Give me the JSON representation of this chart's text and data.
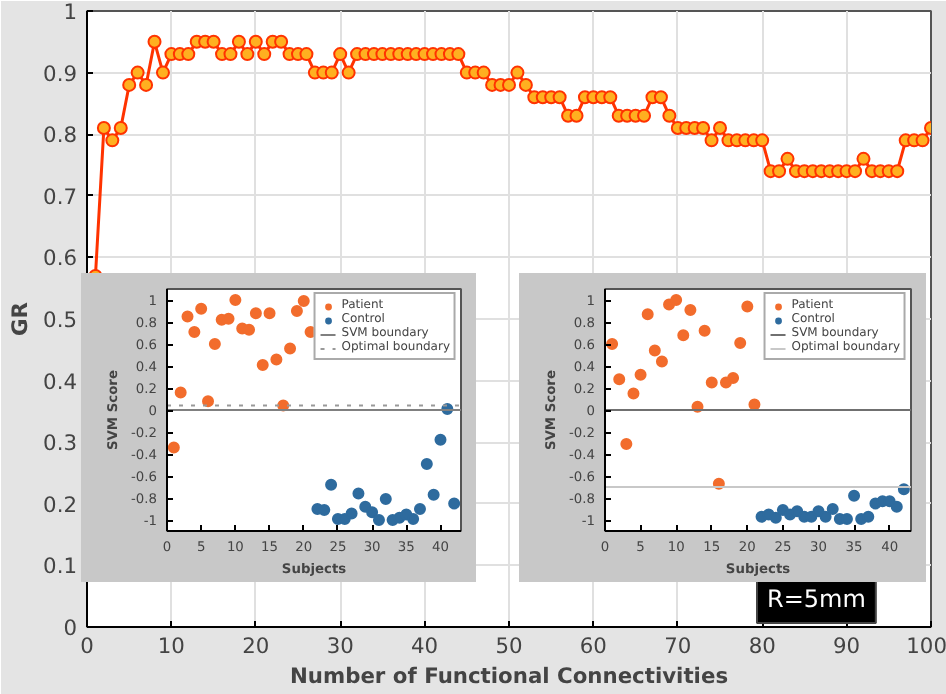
{
  "chart_data": [
    {
      "type": "line",
      "ylabel": "GR",
      "xlabel": "Number of Functional Connectivities",
      "x": [
        1,
        2,
        3,
        4,
        5,
        6,
        7,
        8,
        9,
        10,
        11,
        12,
        13,
        14,
        15,
        16,
        17,
        18,
        19,
        20,
        21,
        22,
        23,
        24,
        25,
        26,
        27,
        28,
        29,
        30,
        31,
        32,
        33,
        34,
        35,
        36,
        37,
        38,
        39,
        40,
        41,
        42,
        43,
        44,
        45,
        46,
        47,
        48,
        49,
        50,
        51,
        52,
        53,
        54,
        55,
        56,
        57,
        58,
        59,
        60,
        61,
        62,
        63,
        64,
        65,
        66,
        67,
        68,
        69,
        70,
        71,
        72,
        73,
        74,
        75,
        76,
        77,
        78,
        79,
        80,
        81,
        82,
        83,
        84,
        85,
        86,
        87,
        88,
        89,
        90,
        91,
        92,
        93,
        94,
        95,
        96,
        97,
        98,
        99,
        100
      ],
      "series": [
        {
          "color": "#ff3300",
          "values": [
            0.57,
            0.81,
            0.79,
            0.81,
            0.88,
            0.9,
            0.88,
            0.95,
            0.9,
            0.93,
            0.93,
            0.93,
            0.95,
            0.95,
            0.95,
            0.93,
            0.93,
            0.95,
            0.93,
            0.95,
            0.93,
            0.95,
            0.95,
            0.93,
            0.93,
            0.93,
            0.9,
            0.9,
            0.9,
            0.93,
            0.9,
            0.93,
            0.93,
            0.93,
            0.93,
            0.93,
            0.93,
            0.93,
            0.93,
            0.93,
            0.93,
            0.93,
            0.93,
            0.93,
            0.9,
            0.9,
            0.9,
            0.88,
            0.88,
            0.88,
            0.9,
            0.88,
            0.86,
            0.86,
            0.86,
            0.86,
            0.83,
            0.83,
            0.86,
            0.86,
            0.86,
            0.86,
            0.83,
            0.83,
            0.83,
            0.83,
            0.86,
            0.86,
            0.83,
            0.81,
            0.81,
            0.81,
            0.81,
            0.79,
            0.81,
            0.79,
            0.79,
            0.79,
            0.79,
            0.79,
            0.74,
            0.74,
            0.76,
            0.74,
            0.74,
            0.74,
            0.74,
            0.74,
            0.74,
            0.74,
            0.74,
            0.76,
            0.74,
            0.74,
            0.74,
            0.74,
            0.79,
            0.79,
            0.79,
            0.81
          ]
        }
      ],
      "xlim": [
        0,
        100
      ],
      "ylim": [
        0,
        1
      ],
      "xticks": [
        0,
        10,
        20,
        30,
        40,
        50,
        60,
        70,
        80,
        90,
        100
      ],
      "yticks": [
        0,
        0.1,
        0.2,
        0.3,
        0.4,
        0.5,
        0.6,
        0.7,
        0.8,
        0.9,
        1
      ],
      "grid": true,
      "marker": "circle",
      "line_style": "solid",
      "annotations": [
        "R=5mm"
      ]
    },
    {
      "type": "scatter",
      "xlabel": "Subjects",
      "ylabel": "SVM Score",
      "legend": "top right",
      "marker": "circle",
      "xlim": [
        0,
        43
      ],
      "ylim": [
        -1.1,
        1.1
      ],
      "xticks": [
        0,
        5,
        10,
        15,
        20,
        25,
        30,
        35,
        40
      ],
      "yticks": [
        -1,
        -0.8,
        -0.6,
        -0.4,
        -0.2,
        0,
        0.2,
        0.4,
        0.6,
        0.8,
        1
      ],
      "series": [
        {
          "name": "Patient",
          "color": "#f26c2c",
          "x": [
            1,
            2,
            3,
            4,
            5,
            6,
            7,
            8,
            9,
            10,
            11,
            12,
            13,
            14,
            15,
            16,
            17,
            18,
            19,
            20,
            21
          ],
          "values": [
            -0.34,
            0.16,
            0.85,
            0.71,
            0.92,
            0.08,
            0.6,
            0.82,
            0.83,
            1.0,
            0.74,
            0.73,
            0.88,
            0.41,
            0.88,
            0.46,
            0.04,
            0.56,
            0.9,
            0.99,
            0.71
          ]
        },
        {
          "name": "Control",
          "color": "#2e6b9e",
          "x": [
            22,
            23,
            24,
            25,
            26,
            27,
            28,
            29,
            30,
            31,
            32,
            33,
            34,
            35,
            36,
            37,
            38,
            39,
            40,
            41,
            42
          ],
          "values": [
            -0.9,
            -0.91,
            -0.68,
            -0.99,
            -0.99,
            -0.94,
            -0.76,
            -0.88,
            -0.93,
            -1.0,
            -0.81,
            -1.0,
            -0.98,
            -0.95,
            -0.99,
            -0.9,
            -0.49,
            -0.77,
            -0.27,
            0.01,
            -0.85
          ]
        }
      ],
      "ref_lines": [
        {
          "axis": "y",
          "value": 0,
          "label": "SVM boundary",
          "color": "#808080",
          "line_style": "solid"
        },
        {
          "axis": "y",
          "value": 0.04,
          "label": "Optimal boundary",
          "color": "#999999",
          "line_style": "dotted"
        }
      ]
    },
    {
      "type": "scatter",
      "xlabel": "Subjects",
      "ylabel": "SVM Score",
      "legend": "top right",
      "marker": "circle",
      "xlim": [
        0,
        43
      ],
      "ylim": [
        -1.1,
        1.1
      ],
      "xticks": [
        0,
        5,
        10,
        15,
        20,
        25,
        30,
        35,
        40
      ],
      "yticks": [
        -1,
        -0.8,
        -0.6,
        -0.4,
        -0.2,
        0,
        0.2,
        0.4,
        0.6,
        0.8,
        1
      ],
      "series": [
        {
          "name": "Patient",
          "color": "#f26c2c",
          "x": [
            1,
            2,
            3,
            4,
            5,
            6,
            7,
            8,
            9,
            10,
            11,
            12,
            13,
            14,
            15,
            16,
            17,
            18,
            19,
            20,
            21
          ],
          "values": [
            0.6,
            0.28,
            -0.31,
            0.15,
            0.32,
            0.87,
            0.54,
            0.44,
            0.96,
            1.0,
            0.68,
            0.91,
            0.03,
            0.72,
            0.25,
            -0.67,
            0.25,
            0.29,
            0.61,
            0.94,
            0.05
          ]
        },
        {
          "name": "Control",
          "color": "#2e6b9e",
          "x": [
            22,
            23,
            24,
            25,
            26,
            27,
            28,
            29,
            30,
            31,
            32,
            33,
            34,
            35,
            36,
            37,
            38,
            39,
            40,
            41,
            42
          ],
          "values": [
            -0.97,
            -0.95,
            -0.98,
            -0.91,
            -0.95,
            -0.92,
            -0.97,
            -0.97,
            -0.92,
            -0.97,
            -0.9,
            -0.99,
            -0.99,
            -0.78,
            -0.99,
            -0.97,
            -0.85,
            -0.83,
            -0.83,
            -0.88,
            -0.72
          ]
        }
      ],
      "ref_lines": [
        {
          "axis": "y",
          "value": 0,
          "label": "SVM boundary",
          "color": "#707070",
          "line_style": "solid"
        },
        {
          "axis": "y",
          "value": -0.7,
          "label": "Optimal boundary",
          "color": "#c8c8c8",
          "line_style": "solid"
        }
      ]
    }
  ]
}
